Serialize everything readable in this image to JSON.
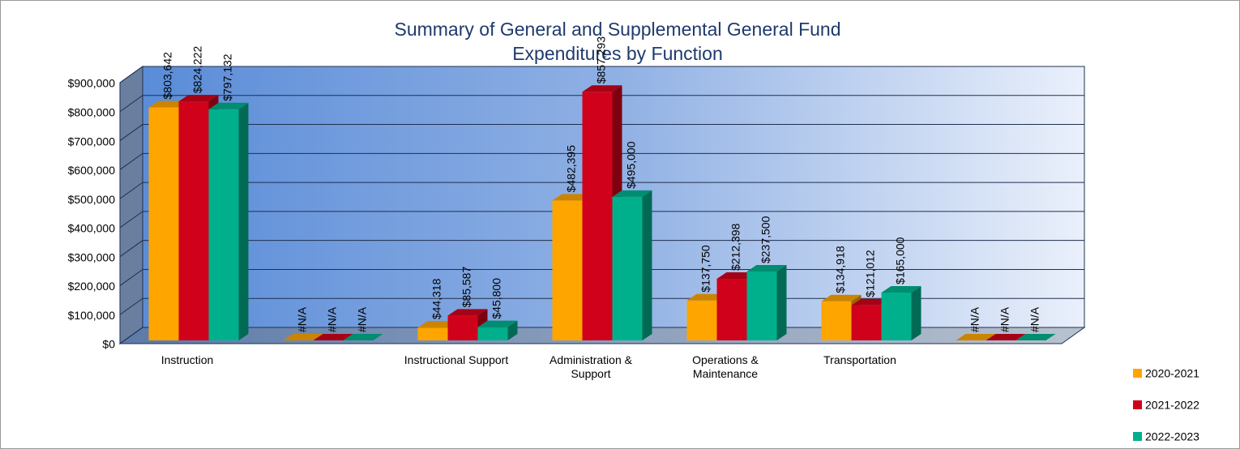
{
  "chart_data": {
    "type": "bar3d",
    "title": [
      "Summary of General and Supplemental General Fund",
      "Expenditures by Function"
    ],
    "categories": [
      "Instruction",
      null,
      "Instructional Support",
      "Administration & Support",
      "Operations & Maintenance",
      "Transportation",
      null
    ],
    "series": [
      {
        "name": "2020-2021",
        "color": "#ffa500",
        "values": [
          803642,
          null,
          44318,
          482395,
          137750,
          134918,
          null
        ],
        "value_labels": [
          "$803,642",
          "#N/A",
          "$44,318",
          "$482,395",
          "$137,750",
          "$134,918",
          "#N/A"
        ]
      },
      {
        "name": "2021-2022",
        "color": "#d0021b",
        "values": [
          824222,
          null,
          85587,
          857293,
          212398,
          121012,
          null
        ],
        "value_labels": [
          "$824,222",
          "#N/A",
          "$85,587",
          "$857,293",
          "$212,398",
          "$121,012",
          "#N/A"
        ]
      },
      {
        "name": "2022-2023",
        "color": "#00b08c",
        "values": [
          797132,
          null,
          45800,
          495000,
          237500,
          165000,
          null
        ],
        "value_labels": [
          "$797,132",
          "#N/A",
          "$45,800",
          "$495,000",
          "$237,500",
          "$165,000",
          "#N/A"
        ]
      }
    ],
    "ylim": [
      0,
      900000
    ],
    "yticks": [
      {
        "value": 0,
        "label": "$0"
      },
      {
        "value": 100000,
        "label": "$100,000"
      },
      {
        "value": 200000,
        "label": "$200,000"
      },
      {
        "value": 300000,
        "label": "$300,000"
      },
      {
        "value": 400000,
        "label": "$400,000"
      },
      {
        "value": 500000,
        "label": "$500,000"
      },
      {
        "value": 600000,
        "label": "$600,000"
      },
      {
        "value": 700000,
        "label": "$700,000"
      },
      {
        "value": 800000,
        "label": "$800,000"
      },
      {
        "value": 900000,
        "label": "$900,000"
      }
    ],
    "grid": true,
    "legend": "right"
  }
}
